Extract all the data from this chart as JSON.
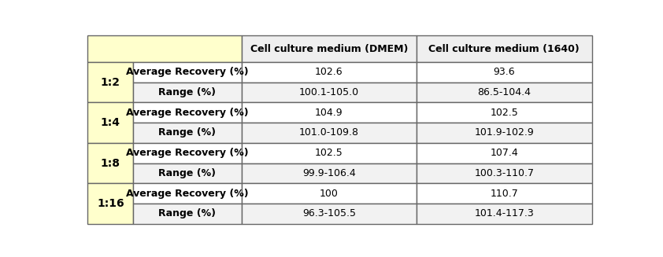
{
  "header_bg": "#FFFFCC",
  "col_header_bg": "#EFEFEF",
  "border_color": "#666666",
  "col_headers": [
    "Cell culture medium (DMEM)",
    "Cell culture medium (1640)"
  ],
  "dilutions": [
    "1:2",
    "1:4",
    "1:8",
    "1:16"
  ],
  "row_labels": [
    "Average Recovery (%)",
    "Range (%)"
  ],
  "data": [
    [
      "102.6",
      "93.6",
      "100.1-105.0",
      "86.5-104.4"
    ],
    [
      "104.9",
      "102.5",
      "101.0-109.8",
      "101.9-102.9"
    ],
    [
      "102.5",
      "107.4",
      "99.9-106.4",
      "100.3-110.7"
    ],
    [
      "100",
      "110.7",
      "96.3-105.5",
      "101.4-117.3"
    ]
  ],
  "fig_width": 8.42,
  "fig_height": 3.27,
  "font_size_header": 9.0,
  "font_size_cell": 9.0,
  "font_size_dilution": 10.0
}
